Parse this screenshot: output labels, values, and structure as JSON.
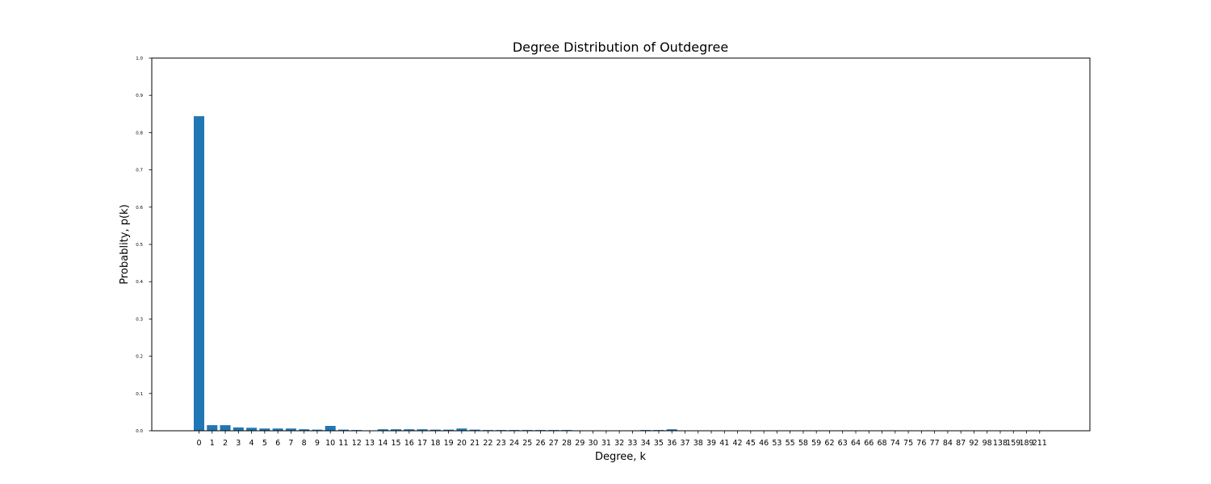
{
  "chart_data": {
    "type": "bar",
    "title": "Degree Distribution of Outdegree",
    "xlabel": "Degree, k",
    "ylabel": "Probablity, p(k)",
    "ylim": [
      0,
      1.0
    ],
    "yticks": [
      "0.0",
      "0.1",
      "0.2",
      "0.3",
      "0.4",
      "0.5",
      "0.6",
      "0.7",
      "0.8",
      "0.9",
      "1.0"
    ],
    "grid": false,
    "bar_color": "#1f77b4",
    "categories": [
      "0",
      "1",
      "2",
      "3",
      "4",
      "5",
      "6",
      "7",
      "8",
      "9",
      "10",
      "11",
      "12",
      "13",
      "14",
      "15",
      "16",
      "17",
      "18",
      "19",
      "20",
      "21",
      "22",
      "23",
      "24",
      "25",
      "26",
      "27",
      "28",
      "29",
      "30",
      "31",
      "32",
      "33",
      "34",
      "35",
      "36",
      "37",
      "38",
      "39",
      "41",
      "42",
      "45",
      "46",
      "53",
      "55",
      "58",
      "59",
      "62",
      "63",
      "64",
      "66",
      "68",
      "74",
      "75",
      "76",
      "77",
      "84",
      "87",
      "92",
      "98",
      "138",
      "159",
      "189",
      "211"
    ],
    "values": [
      0.844,
      0.015,
      0.015,
      0.009,
      0.008,
      0.006,
      0.006,
      0.006,
      0.004,
      0.003,
      0.013,
      0.003,
      0.002,
      0.001,
      0.004,
      0.004,
      0.004,
      0.004,
      0.003,
      0.003,
      0.006,
      0.003,
      0.002,
      0.002,
      0.002,
      0.002,
      0.002,
      0.002,
      0.002,
      0.001,
      0.001,
      0.001,
      0.001,
      0.001,
      0.002,
      0.002,
      0.004,
      0.001,
      0.001,
      0.001,
      0.001,
      0.001,
      0.001,
      0.001,
      0.001,
      0.001,
      0.001,
      0.001,
      0.001,
      0.001,
      0.001,
      0.001,
      0.001,
      0.001,
      0.001,
      0.001,
      0.001,
      0.001,
      0.001,
      0.001,
      0.001,
      0.001,
      0.001,
      0.001,
      0.001
    ]
  }
}
